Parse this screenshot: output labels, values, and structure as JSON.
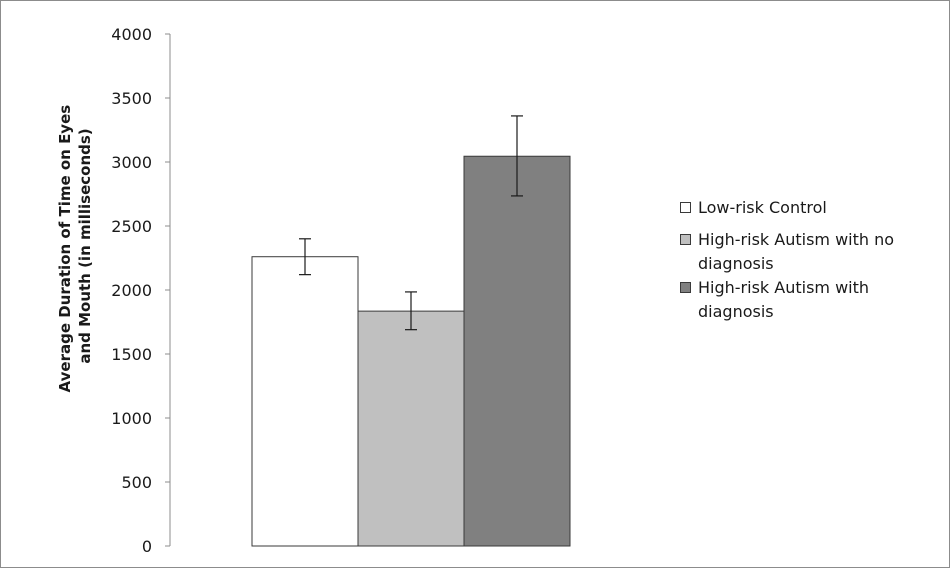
{
  "chart_data": {
    "type": "bar",
    "title": "",
    "xlabel": "",
    "ylabel_lines": [
      "Average Duration of Time on Eyes",
      "and Mouth (in milliseconds)"
    ],
    "ylim": [
      0,
      4000
    ],
    "yticks": [
      0,
      500,
      1000,
      1500,
      2000,
      2500,
      3000,
      3500,
      4000
    ],
    "grid": false,
    "legend_position": "right",
    "series": [
      {
        "name": "Low-risk Control",
        "value": 2260,
        "error_low": 2120,
        "error_high": 2400,
        "color": "#ffffff"
      },
      {
        "name": "High-risk Autism with no diagnosis",
        "value": 1835,
        "error_low": 1690,
        "error_high": 1985,
        "color": "#c0c0c0"
      },
      {
        "name": "High-risk Autism with diagnosis",
        "value": 3045,
        "error_low": 2735,
        "error_high": 3360,
        "color": "#808080"
      }
    ]
  }
}
